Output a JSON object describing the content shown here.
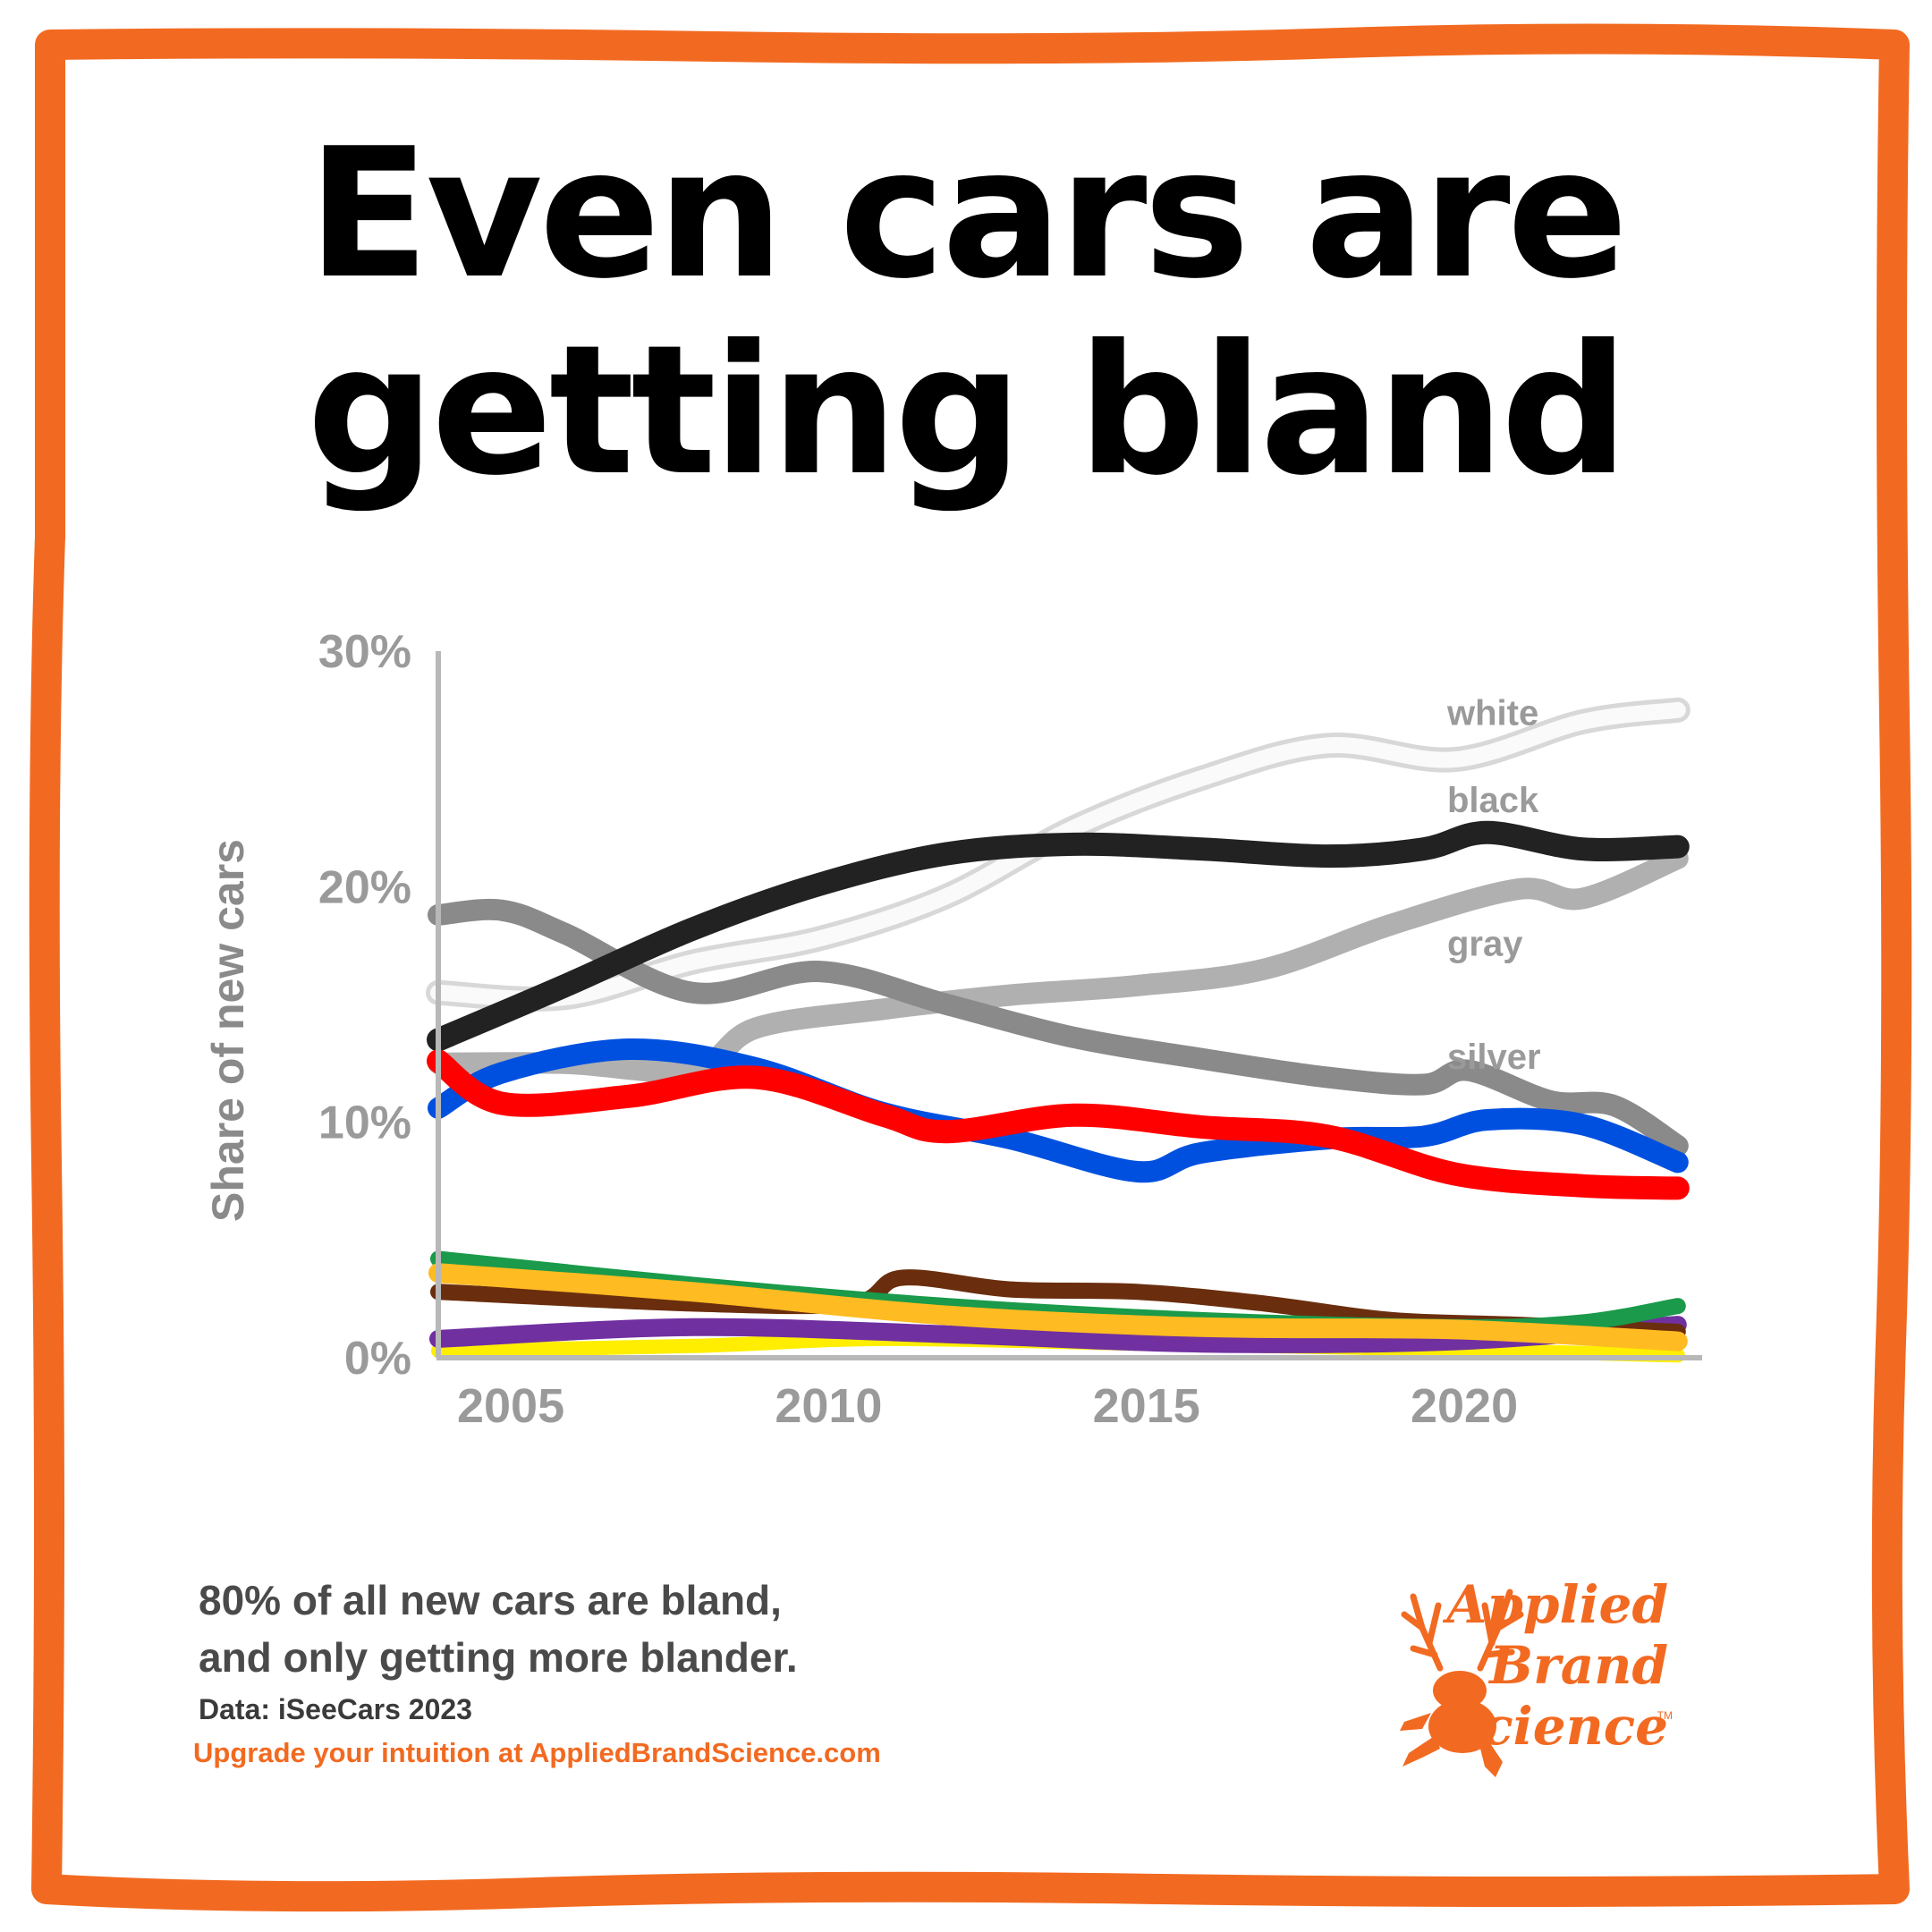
{
  "title_line1": "Even cars are",
  "title_line2": "getting bland",
  "caption_line1": "80% of all new cars are bland,",
  "caption_line2": "and only getting more blander.",
  "source": "Data: iSeeCars 2023",
  "cta": "Upgrade your intuition at AppliedBrandScience.com",
  "brand": {
    "line1": "Applied",
    "line2": "Brand",
    "line3": "Science",
    "tm": "TM"
  },
  "colors": {
    "frame": "#f26a21",
    "axis": "#b8b8b8",
    "tick_text": "#9a9a9a",
    "brand": "#f26a21"
  },
  "chart_data": {
    "type": "line",
    "ylabel": "Share of new cars",
    "ylim": [
      0,
      30
    ],
    "yticks": [
      "0%",
      "10%",
      "20%",
      "30%"
    ],
    "ytick_values": [
      0,
      10,
      20,
      30
    ],
    "xlim": [
      2004,
      2023.7
    ],
    "xticks": [
      "2005",
      "2010",
      "2015",
      "2020"
    ],
    "xtick_values": [
      2005,
      2010,
      2015,
      2020
    ],
    "grid": false,
    "series": [
      {
        "name": "white",
        "label": "white",
        "color": "#e6e6e6",
        "x": [
          2004,
          2006,
          2008,
          2010,
          2012,
          2014,
          2016,
          2018,
          2020,
          2022,
          2023.5
        ],
        "y": [
          15.5,
          15.3,
          16.8,
          17.8,
          19.6,
          22.5,
          24.6,
          26.0,
          25.4,
          27.0,
          27.5
        ]
      },
      {
        "name": "black",
        "label": "black",
        "color": "#222222",
        "x": [
          2004,
          2006,
          2008,
          2010,
          2012,
          2014,
          2016,
          2018,
          2019.5,
          2020.5,
          2022,
          2023.5
        ],
        "y": [
          13.5,
          15.8,
          18.2,
          20.1,
          21.4,
          21.8,
          21.6,
          21.3,
          21.6,
          22.3,
          21.6,
          21.7
        ]
      },
      {
        "name": "gray",
        "label": "gray",
        "color": "#b0b0b0",
        "x": [
          2004,
          2006,
          2008,
          2009,
          2011,
          2013,
          2015,
          2017,
          2019,
          2021,
          2022,
          2023.5
        ],
        "y": [
          12.5,
          12.5,
          12.2,
          14.0,
          14.8,
          15.4,
          15.8,
          16.5,
          18.4,
          19.9,
          19.5,
          21.2
        ]
      },
      {
        "name": "silver",
        "label": "silver",
        "color": "#8a8a8a",
        "x": [
          2004,
          2005,
          2006,
          2008,
          2010,
          2012,
          2014,
          2016,
          2018,
          2019.5,
          2020.2,
          2021.5,
          2022.5,
          2023.5
        ],
        "y": [
          18.8,
          19.0,
          18.0,
          15.5,
          16.4,
          15.0,
          13.6,
          12.7,
          11.9,
          11.6,
          12.2,
          10.9,
          10.7,
          9.0
        ]
      },
      {
        "name": "blue",
        "color": "#0050e0",
        "x": [
          2004,
          2005,
          2007,
          2009,
          2011,
          2013,
          2015,
          2016,
          2018,
          2019.5,
          2020.5,
          2022,
          2023.5
        ],
        "y": [
          10.6,
          12.1,
          13.1,
          12.3,
          10.4,
          9.3,
          7.9,
          8.7,
          9.3,
          9.4,
          10.1,
          9.9,
          8.3
        ]
      },
      {
        "name": "red",
        "color": "#ff0000",
        "x": [
          2004,
          2005,
          2007,
          2009,
          2011,
          2012,
          2014,
          2016,
          2018,
          2020,
          2022,
          2023.5
        ],
        "y": [
          12.6,
          10.8,
          11.1,
          11.9,
          10.3,
          9.6,
          10.3,
          9.8,
          9.4,
          7.8,
          7.3,
          7.2
        ]
      },
      {
        "name": "green",
        "color": "#1a9a4a",
        "x": [
          2004,
          2008,
          2012,
          2016,
          2020,
          2022,
          2023.5
        ],
        "y": [
          4.2,
          3.1,
          2.2,
          1.6,
          1.3,
          1.5,
          2.2
        ]
      },
      {
        "name": "brown",
        "color": "#6a2e0e",
        "x": [
          2004,
          2008,
          2010.5,
          2011.3,
          2013,
          2015,
          2017,
          2019,
          2021,
          2023.5
        ],
        "y": [
          2.8,
          2.3,
          2.3,
          3.4,
          2.9,
          2.8,
          2.3,
          1.6,
          1.4,
          1.1
        ]
      },
      {
        "name": "orange",
        "color": "#ffbb22",
        "x": [
          2004,
          2008,
          2012,
          2016,
          2020,
          2023.5
        ],
        "y": [
          3.6,
          2.8,
          1.8,
          1.3,
          1.2,
          0.7
        ]
      },
      {
        "name": "purple",
        "color": "#7030a0",
        "x": [
          2004,
          2008,
          2012,
          2016,
          2020,
          2023.5
        ],
        "y": [
          0.8,
          1.3,
          1.0,
          0.6,
          0.7,
          1.4
        ]
      },
      {
        "name": "yellow",
        "color": "#ffee00",
        "x": [
          2004,
          2008,
          2011,
          2015,
          2019,
          2023.5
        ],
        "y": [
          0.3,
          0.5,
          0.8,
          0.6,
          0.4,
          0.1
        ]
      }
    ]
  }
}
